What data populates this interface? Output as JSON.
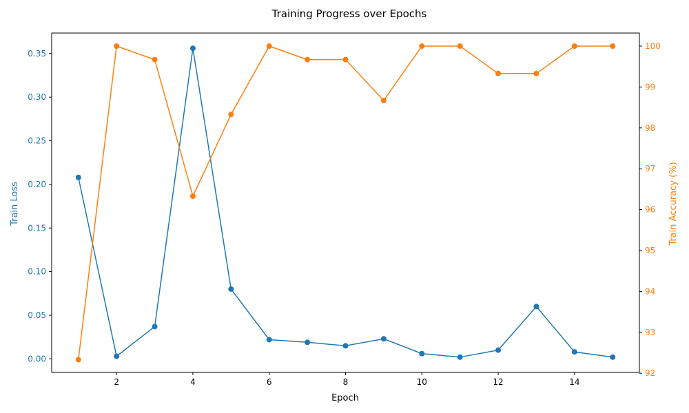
{
  "chart_data": {
    "type": "line",
    "title": "Training Progress over Epochs",
    "xlabel": "Epoch",
    "ylabel_left": "Train Loss",
    "ylabel_right": "Train Accuracy (%)",
    "xlim": [
      0.3,
      15.7
    ],
    "ylim_left": [
      -0.0155,
      0.3735
    ],
    "ylim_right": [
      92.02,
      100.32
    ],
    "x_ticks": [
      2,
      4,
      6,
      8,
      10,
      12,
      14
    ],
    "y_ticks_left": [
      "0.00",
      "0.05",
      "0.10",
      "0.15",
      "0.20",
      "0.25",
      "0.30",
      "0.35"
    ],
    "y_ticks_right": [
      92,
      93,
      94,
      95,
      96,
      97,
      98,
      99,
      100
    ],
    "grid": false,
    "x": [
      1,
      2,
      3,
      4,
      5,
      6,
      7,
      8,
      9,
      10,
      11,
      12,
      13,
      14,
      15
    ],
    "series": [
      {
        "axis": "left",
        "color": "#1f77b4",
        "values": [
          0.208,
          0.003,
          0.037,
          0.356,
          0.08,
          0.022,
          0.019,
          0.015,
          0.023,
          0.006,
          0.002,
          0.01,
          0.06,
          0.008,
          0.002
        ]
      },
      {
        "axis": "right",
        "color": "#ff7f0e",
        "values": [
          92.33,
          100.0,
          99.67,
          96.33,
          98.33,
          100.0,
          99.67,
          99.67,
          98.67,
          100.0,
          100.0,
          99.33,
          99.33,
          100.0,
          100.0
        ]
      }
    ]
  }
}
